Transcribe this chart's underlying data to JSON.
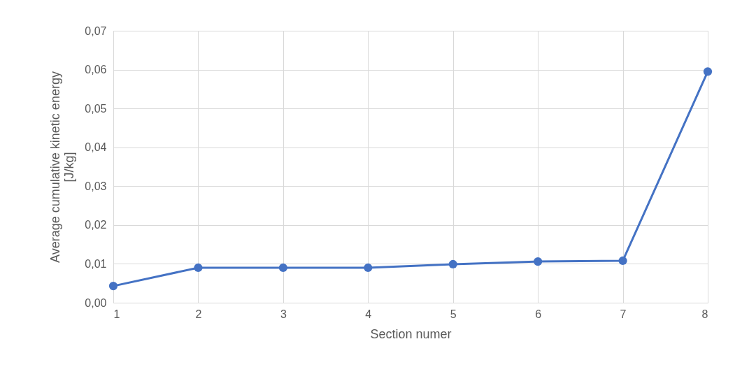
{
  "chart_data": {
    "type": "line",
    "xlabel": "Section numer",
    "ylabel": "Average cumulative kinetic energy [J/kg]",
    "x": [
      1,
      2,
      3,
      4,
      5,
      6,
      7,
      8
    ],
    "series": [
      {
        "color": "#4472c4",
        "values": [
          0.0043,
          0.009,
          0.009,
          0.009,
          0.0099,
          0.0106,
          0.0108,
          0.0595
        ]
      }
    ],
    "xlim": [
      1,
      8
    ],
    "xticks": [
      1,
      2,
      3,
      4,
      5,
      6,
      7,
      8
    ],
    "ylim": [
      0,
      0.07
    ],
    "yticks": [
      {
        "value": 0,
        "label": "0,00"
      },
      {
        "value": 0.01,
        "label": "0,01"
      },
      {
        "value": 0.02,
        "label": "0,02"
      },
      {
        "value": 0.03,
        "label": "0,03"
      },
      {
        "value": 0.04,
        "label": "0,04"
      },
      {
        "value": 0.05,
        "label": "0,05"
      },
      {
        "value": 0.06,
        "label": "0,06"
      },
      {
        "value": 0.07,
        "label": "0,07"
      }
    ],
    "grid": true,
    "marker": "circle",
    "line_style": "solid"
  }
}
